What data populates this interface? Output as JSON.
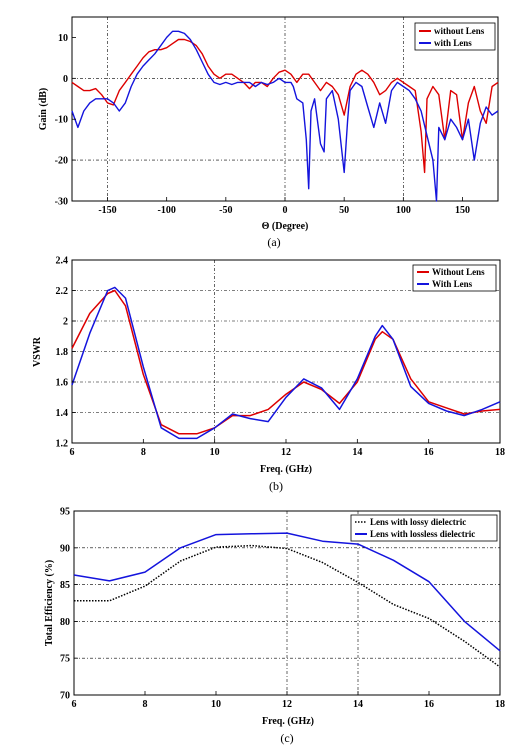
{
  "chart_data": [
    {
      "type": "line",
      "caption": "(a)",
      "xlabel": "Θ (Degree)",
      "ylabel": "Gain (dB)",
      "xlim": [
        -180,
        180
      ],
      "ylim": [
        -30,
        15
      ],
      "xticks": [
        -150,
        -100,
        -50,
        0,
        50,
        100,
        150
      ],
      "yticks": [
        -30,
        -20,
        -10,
        0,
        10
      ],
      "legend": "top-right",
      "series": [
        {
          "name": "without Lens",
          "color": "#dd0000",
          "x": [
            -180,
            -175,
            -170,
            -165,
            -160,
            -155,
            -150,
            -145,
            -140,
            -135,
            -130,
            -125,
            -120,
            -115,
            -110,
            -105,
            -100,
            -95,
            -90,
            -85,
            -80,
            -75,
            -70,
            -65,
            -60,
            -55,
            -50,
            -45,
            -40,
            -35,
            -30,
            -25,
            -20,
            -15,
            -10,
            -5,
            0,
            5,
            10,
            15,
            20,
            25,
            30,
            35,
            40,
            45,
            50,
            55,
            60,
            65,
            70,
            75,
            80,
            85,
            90,
            95,
            100,
            105,
            110,
            115,
            118,
            120,
            125,
            130,
            135,
            140,
            145,
            150,
            155,
            160,
            165,
            170,
            175,
            180
          ],
          "y": [
            -1,
            -2,
            -3,
            -3,
            -2.5,
            -4,
            -6,
            -6.5,
            -3,
            -1,
            1,
            3,
            5,
            6.5,
            7,
            7,
            7.5,
            8.5,
            9.5,
            9.5,
            9,
            8,
            6,
            3,
            1,
            0,
            1,
            1,
            0,
            -1,
            -2.5,
            -1,
            -1,
            -2,
            0,
            1.5,
            2,
            1,
            -1,
            1,
            1,
            -1,
            -3,
            -1,
            -2,
            -4,
            -9,
            -2,
            1,
            2,
            1,
            -1,
            -4,
            -3,
            -1,
            0,
            -1,
            -2,
            -3,
            -13,
            -23,
            -5,
            -2,
            -4,
            -15,
            -3,
            -4,
            -15,
            -6,
            -2,
            -8,
            -11,
            -2,
            -1
          ]
        },
        {
          "name": "with Lens",
          "color": "#1414dd",
          "x": [
            -180,
            -175,
            -170,
            -165,
            -160,
            -155,
            -150,
            -145,
            -140,
            -135,
            -130,
            -125,
            -120,
            -115,
            -110,
            -105,
            -100,
            -95,
            -90,
            -85,
            -80,
            -75,
            -70,
            -65,
            -60,
            -55,
            -50,
            -45,
            -40,
            -35,
            -30,
            -25,
            -20,
            -15,
            -10,
            -5,
            0,
            5,
            7,
            10,
            15,
            18,
            20,
            22,
            25,
            30,
            33,
            35,
            40,
            45,
            50,
            53,
            55,
            60,
            65,
            70,
            75,
            80,
            85,
            90,
            95,
            100,
            105,
            110,
            115,
            120,
            125,
            128,
            130,
            135,
            140,
            145,
            150,
            155,
            160,
            165,
            170,
            175,
            180
          ],
          "y": [
            -8,
            -12,
            -8,
            -6,
            -5,
            -5,
            -5,
            -6,
            -8,
            -6,
            -2,
            1,
            3,
            4.5,
            6,
            8,
            10,
            11.5,
            11.5,
            11,
            9.5,
            7,
            4,
            1,
            -1,
            -1.5,
            -1,
            -1.5,
            -1,
            -1,
            -1,
            -2,
            -1,
            -1.5,
            -1,
            0,
            -1,
            -1,
            -2,
            -5,
            -6,
            -15,
            -27,
            -8,
            -5,
            -16,
            -18,
            -5,
            -3,
            -10,
            -23,
            -10,
            -3,
            -1,
            -2,
            -7,
            -12,
            -6,
            -11,
            -3,
            -1,
            -2,
            -3,
            -5,
            -8,
            -14,
            -20,
            -30,
            -12,
            -15,
            -10,
            -12,
            -15,
            -10,
            -20,
            -11,
            -7,
            -9,
            -8
          ]
        }
      ]
    },
    {
      "type": "line",
      "caption": "(b)",
      "xlabel": "Freq. (GHz)",
      "ylabel": "VSWR",
      "xlim": [
        6,
        18
      ],
      "ylim": [
        1.2,
        2.4
      ],
      "xticks": [
        6,
        8,
        10,
        12,
        14,
        16,
        18
      ],
      "yticks": [
        1.2,
        1.4,
        1.6,
        1.8,
        2,
        2.2,
        2.4
      ],
      "legend": "top-right",
      "series": [
        {
          "name": "Without Lens",
          "color": "#dd0000",
          "x": [
            6,
            6.5,
            7,
            7.2,
            7.5,
            8,
            8.5,
            9,
            9.5,
            10,
            10.5,
            11,
            11.5,
            12,
            12.5,
            13,
            13.5,
            14,
            14.5,
            14.7,
            15,
            15.5,
            16,
            16.5,
            17,
            17.5,
            18
          ],
          "y": [
            1.82,
            2.05,
            2.18,
            2.2,
            2.1,
            1.65,
            1.32,
            1.26,
            1.26,
            1.3,
            1.38,
            1.38,
            1.42,
            1.52,
            1.6,
            1.55,
            1.46,
            1.6,
            1.88,
            1.93,
            1.88,
            1.62,
            1.47,
            1.43,
            1.39,
            1.41,
            1.42
          ]
        },
        {
          "name": "With Lens",
          "color": "#1414dd",
          "x": [
            6,
            6.5,
            7,
            7.2,
            7.5,
            8,
            8.5,
            9,
            9.5,
            10,
            10.5,
            11,
            11.5,
            12,
            12.5,
            13,
            13.5,
            14,
            14.5,
            14.7,
            15,
            15.5,
            16,
            16.5,
            17,
            17.5,
            18
          ],
          "y": [
            1.58,
            1.92,
            2.2,
            2.22,
            2.15,
            1.7,
            1.3,
            1.23,
            1.23,
            1.3,
            1.39,
            1.36,
            1.34,
            1.5,
            1.62,
            1.56,
            1.42,
            1.62,
            1.9,
            1.97,
            1.88,
            1.57,
            1.46,
            1.41,
            1.38,
            1.42,
            1.47
          ]
        }
      ]
    },
    {
      "type": "line",
      "caption": "(c)",
      "xlabel": "Freq. (GHz)",
      "ylabel": "Total Efficiency (%)",
      "xlim": [
        6,
        18
      ],
      "ylim": [
        70,
        95
      ],
      "xticks": [
        6,
        8,
        10,
        12,
        14,
        16,
        18
      ],
      "yticks": [
        70,
        75,
        80,
        85,
        90,
        95
      ],
      "legend": "top-right",
      "series": [
        {
          "name": "Lens with lossy dielectric",
          "color": "#000000",
          "dashed": true,
          "x": [
            6,
            7,
            8,
            9,
            10,
            11,
            12,
            13,
            14,
            15,
            16,
            17,
            18
          ],
          "y": [
            82.8,
            82.8,
            84.8,
            88.2,
            90.1,
            90.3,
            89.9,
            88,
            85.3,
            82.3,
            80.4,
            77.3,
            73.8
          ]
        },
        {
          "name": "Lens with lossless dielectric",
          "color": "#1414dd",
          "dashed": false,
          "x": [
            6,
            7,
            8,
            9,
            10,
            11,
            12,
            13,
            14,
            15,
            16,
            17,
            18
          ],
          "y": [
            86.3,
            85.5,
            86.7,
            90,
            91.8,
            91.9,
            92,
            90.9,
            90.5,
            88.3,
            85.4,
            80,
            76
          ]
        }
      ]
    }
  ]
}
